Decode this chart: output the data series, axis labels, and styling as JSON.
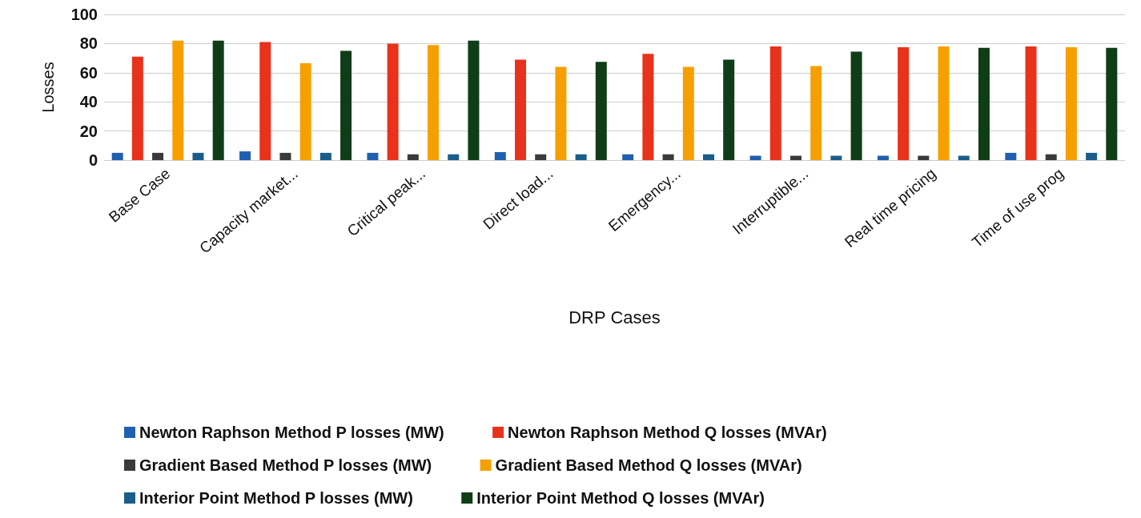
{
  "chart_data": {
    "type": "bar",
    "xlabel": "DRP Cases",
    "ylabel": "Losses",
    "categories": [
      "Base Case",
      "Capacity market...",
      "Critical peak...",
      "Direct load...",
      "Emergency...",
      "Interruptible...",
      "Real time pricing",
      "Time of use prog"
    ],
    "series": [
      {
        "name": "Newton Raphson Method P losses (MW)",
        "color": "#1f5fb0",
        "values": [
          5,
          6,
          5,
          5.5,
          4,
          3,
          3,
          5
        ]
      },
      {
        "name": "Newton Raphson Method Q losses (MVAr)",
        "color": "#e8321c",
        "values": [
          71,
          81,
          80,
          69,
          73,
          78,
          77.5,
          78
        ]
      },
      {
        "name": "Gradient Based Method P losses (MW)",
        "color": "#3a3a3a",
        "values": [
          5,
          5,
          4,
          4,
          4,
          3,
          3,
          4
        ]
      },
      {
        "name": "Gradient Based Method Q losses (MVAr)",
        "color": "#f5a000",
        "values": [
          82,
          66.5,
          79,
          64,
          64,
          64.5,
          78,
          77.5
        ]
      },
      {
        "name": "Interior Point Method P losses (MW)",
        "color": "#1a5d8a",
        "values": [
          5,
          5,
          4,
          4,
          4,
          3,
          3,
          5
        ]
      },
      {
        "name": "Interior Point Method Q losses (MVAr)",
        "color": "#0f3d18",
        "values": [
          82,
          75,
          82,
          67.5,
          69,
          74.5,
          77,
          77
        ]
      }
    ],
    "ylim": [
      0,
      100
    ],
    "yticks": [
      0,
      20,
      40,
      60,
      80,
      100
    ],
    "grid": "y",
    "legend": "bottom"
  }
}
